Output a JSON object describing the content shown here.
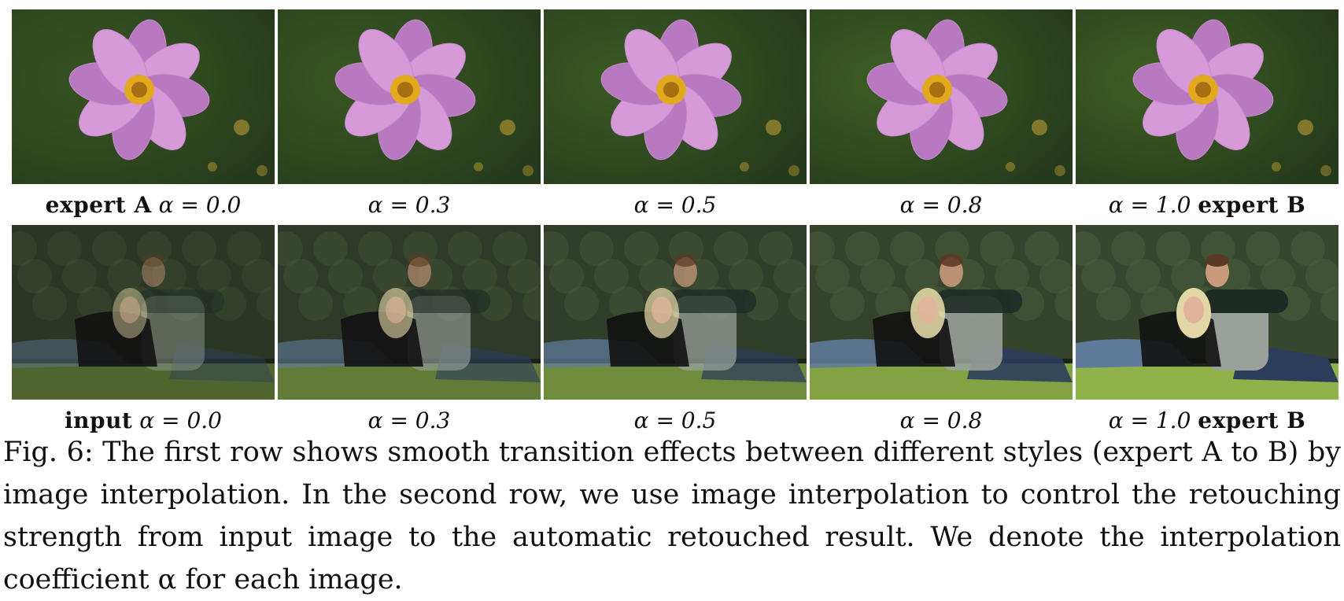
{
  "figure": {
    "row1_labels": [
      {
        "prefix": "expert A",
        "alpha": "α = 0.0",
        "suffix": ""
      },
      {
        "prefix": "",
        "alpha": "α = 0.3",
        "suffix": ""
      },
      {
        "prefix": "",
        "alpha": "α = 0.5",
        "suffix": ""
      },
      {
        "prefix": "",
        "alpha": "α = 0.8",
        "suffix": ""
      },
      {
        "prefix": "",
        "alpha": "α = 1.0",
        "suffix": "expert B"
      }
    ],
    "row2_labels": [
      {
        "prefix": "input",
        "alpha": "α = 0.0",
        "suffix": ""
      },
      {
        "prefix": "",
        "alpha": "α = 0.3",
        "suffix": ""
      },
      {
        "prefix": "",
        "alpha": "α = 0.5",
        "suffix": ""
      },
      {
        "prefix": "",
        "alpha": "α = 0.8",
        "suffix": ""
      },
      {
        "prefix": "",
        "alpha": "α = 1.0",
        "suffix": "expert B"
      }
    ],
    "row1_alphas": [
      0.0,
      0.3,
      0.5,
      0.8,
      1.0
    ],
    "row2_alphas": [
      0.0,
      0.3,
      0.5,
      0.8,
      1.0
    ],
    "caption": "Fig. 6: The first row shows smooth transition effects between different styles (expert A to B) by image interpolation. In the second row, we use image interpolation to control the retouching strength from input image to the automatic retouched result. We denote the interpolation coefficient α for each image.",
    "colors": {
      "petal": "#d79ad8",
      "petal_dark": "#b979c0",
      "center": "#e2a81e",
      "grass": "#8fb34a",
      "foliage": "#3b4a32",
      "flower_bg_a": "#253a1c",
      "flower_bg_b": "#3f6024"
    }
  }
}
